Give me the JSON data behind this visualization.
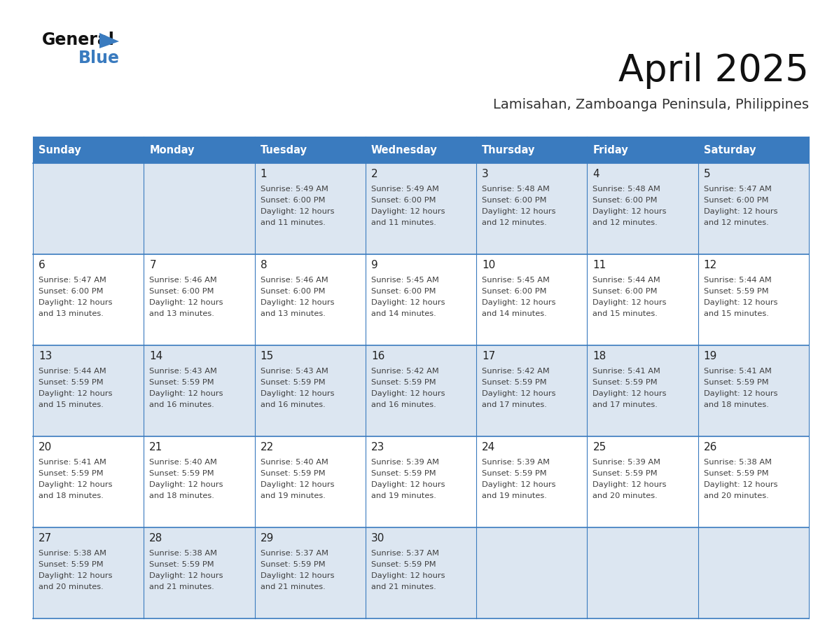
{
  "title": "April 2025",
  "subtitle": "Lamisahan, Zamboanga Peninsula, Philippines",
  "days_of_week": [
    "Sunday",
    "Monday",
    "Tuesday",
    "Wednesday",
    "Thursday",
    "Friday",
    "Saturday"
  ],
  "header_bg": "#3a7bbf",
  "header_text": "#ffffff",
  "row_odd_bg": "#dce6f1",
  "row_even_bg": "#ffffff",
  "border_color": "#3a7bbf",
  "text_color": "#404040",
  "day_num_color": "#222222",
  "weeks": [
    [
      {
        "day": "",
        "sunrise": "",
        "sunset": "",
        "daylight": ""
      },
      {
        "day": "",
        "sunrise": "",
        "sunset": "",
        "daylight": ""
      },
      {
        "day": "1",
        "sunrise": "5:49 AM",
        "sunset": "6:00 PM",
        "daylight": "12 hours\nand 11 minutes."
      },
      {
        "day": "2",
        "sunrise": "5:49 AM",
        "sunset": "6:00 PM",
        "daylight": "12 hours\nand 11 minutes."
      },
      {
        "day": "3",
        "sunrise": "5:48 AM",
        "sunset": "6:00 PM",
        "daylight": "12 hours\nand 12 minutes."
      },
      {
        "day": "4",
        "sunrise": "5:48 AM",
        "sunset": "6:00 PM",
        "daylight": "12 hours\nand 12 minutes."
      },
      {
        "day": "5",
        "sunrise": "5:47 AM",
        "sunset": "6:00 PM",
        "daylight": "12 hours\nand 12 minutes."
      }
    ],
    [
      {
        "day": "6",
        "sunrise": "5:47 AM",
        "sunset": "6:00 PM",
        "daylight": "12 hours\nand 13 minutes."
      },
      {
        "day": "7",
        "sunrise": "5:46 AM",
        "sunset": "6:00 PM",
        "daylight": "12 hours\nand 13 minutes."
      },
      {
        "day": "8",
        "sunrise": "5:46 AM",
        "sunset": "6:00 PM",
        "daylight": "12 hours\nand 13 minutes."
      },
      {
        "day": "9",
        "sunrise": "5:45 AM",
        "sunset": "6:00 PM",
        "daylight": "12 hours\nand 14 minutes."
      },
      {
        "day": "10",
        "sunrise": "5:45 AM",
        "sunset": "6:00 PM",
        "daylight": "12 hours\nand 14 minutes."
      },
      {
        "day": "11",
        "sunrise": "5:44 AM",
        "sunset": "6:00 PM",
        "daylight": "12 hours\nand 15 minutes."
      },
      {
        "day": "12",
        "sunrise": "5:44 AM",
        "sunset": "5:59 PM",
        "daylight": "12 hours\nand 15 minutes."
      }
    ],
    [
      {
        "day": "13",
        "sunrise": "5:44 AM",
        "sunset": "5:59 PM",
        "daylight": "12 hours\nand 15 minutes."
      },
      {
        "day": "14",
        "sunrise": "5:43 AM",
        "sunset": "5:59 PM",
        "daylight": "12 hours\nand 16 minutes."
      },
      {
        "day": "15",
        "sunrise": "5:43 AM",
        "sunset": "5:59 PM",
        "daylight": "12 hours\nand 16 minutes."
      },
      {
        "day": "16",
        "sunrise": "5:42 AM",
        "sunset": "5:59 PM",
        "daylight": "12 hours\nand 16 minutes."
      },
      {
        "day": "17",
        "sunrise": "5:42 AM",
        "sunset": "5:59 PM",
        "daylight": "12 hours\nand 17 minutes."
      },
      {
        "day": "18",
        "sunrise": "5:41 AM",
        "sunset": "5:59 PM",
        "daylight": "12 hours\nand 17 minutes."
      },
      {
        "day": "19",
        "sunrise": "5:41 AM",
        "sunset": "5:59 PM",
        "daylight": "12 hours\nand 18 minutes."
      }
    ],
    [
      {
        "day": "20",
        "sunrise": "5:41 AM",
        "sunset": "5:59 PM",
        "daylight": "12 hours\nand 18 minutes."
      },
      {
        "day": "21",
        "sunrise": "5:40 AM",
        "sunset": "5:59 PM",
        "daylight": "12 hours\nand 18 minutes."
      },
      {
        "day": "22",
        "sunrise": "5:40 AM",
        "sunset": "5:59 PM",
        "daylight": "12 hours\nand 19 minutes."
      },
      {
        "day": "23",
        "sunrise": "5:39 AM",
        "sunset": "5:59 PM",
        "daylight": "12 hours\nand 19 minutes."
      },
      {
        "day": "24",
        "sunrise": "5:39 AM",
        "sunset": "5:59 PM",
        "daylight": "12 hours\nand 19 minutes."
      },
      {
        "day": "25",
        "sunrise": "5:39 AM",
        "sunset": "5:59 PM",
        "daylight": "12 hours\nand 20 minutes."
      },
      {
        "day": "26",
        "sunrise": "5:38 AM",
        "sunset": "5:59 PM",
        "daylight": "12 hours\nand 20 minutes."
      }
    ],
    [
      {
        "day": "27",
        "sunrise": "5:38 AM",
        "sunset": "5:59 PM",
        "daylight": "12 hours\nand 20 minutes."
      },
      {
        "day": "28",
        "sunrise": "5:38 AM",
        "sunset": "5:59 PM",
        "daylight": "12 hours\nand 21 minutes."
      },
      {
        "day": "29",
        "sunrise": "5:37 AM",
        "sunset": "5:59 PM",
        "daylight": "12 hours\nand 21 minutes."
      },
      {
        "day": "30",
        "sunrise": "5:37 AM",
        "sunset": "5:59 PM",
        "daylight": "12 hours\nand 21 minutes."
      },
      {
        "day": "",
        "sunrise": "",
        "sunset": "",
        "daylight": ""
      },
      {
        "day": "",
        "sunrise": "",
        "sunset": "",
        "daylight": ""
      },
      {
        "day": "",
        "sunrise": "",
        "sunset": "",
        "daylight": ""
      }
    ]
  ]
}
